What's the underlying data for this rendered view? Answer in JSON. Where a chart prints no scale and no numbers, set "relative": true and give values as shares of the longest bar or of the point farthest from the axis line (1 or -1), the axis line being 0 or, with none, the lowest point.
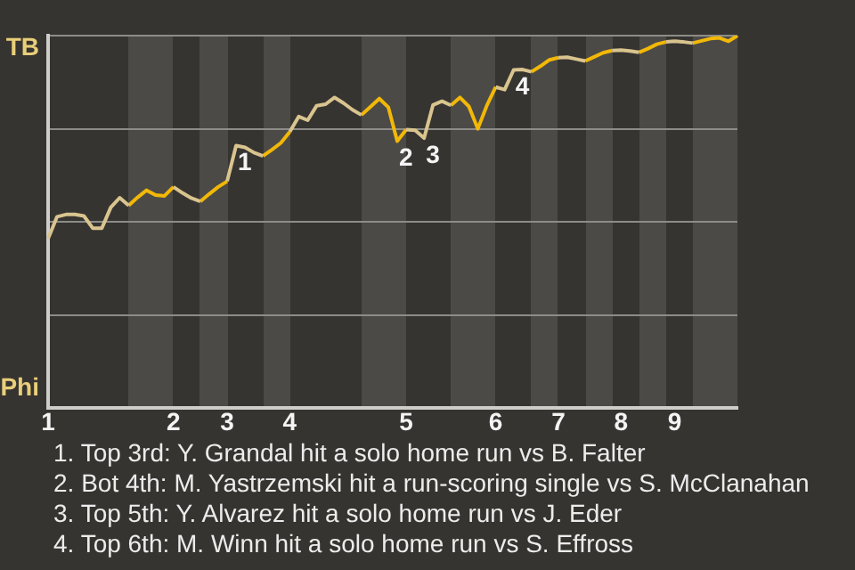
{
  "chart_data": {
    "type": "line",
    "relative": true,
    "grid": "y",
    "marker": "none",
    "categories": [
      "1",
      null,
      null,
      null,
      null,
      null,
      null,
      null,
      null,
      null,
      null,
      null,
      null,
      null,
      "2",
      null,
      null,
      null,
      null,
      null,
      "3",
      null,
      null,
      null,
      null,
      null,
      null,
      "4",
      null,
      null,
      null,
      null,
      null,
      null,
      null,
      null,
      null,
      null,
      null,
      null,
      "5",
      null,
      null,
      null,
      null,
      null,
      null,
      null,
      null,
      null,
      "6",
      null,
      null,
      null,
      null,
      null,
      null,
      "7",
      null,
      null,
      null,
      null,
      null,
      null,
      "8",
      null,
      null,
      null,
      null,
      null,
      "9",
      null,
      null,
      null,
      null,
      null,
      null,
      null
    ],
    "series": [
      {
        "color": "#d9c48f",
        "values": [
          0.455,
          0.514,
          0.52,
          0.52,
          0.516,
          0.483,
          0.483,
          0.539,
          0.565,
          0.544,
          null,
          null,
          null,
          null,
          0.594,
          0.578,
          0.564,
          0.555,
          null,
          null,
          0.609,
          0.705,
          0.7,
          0.686,
          0.677,
          null,
          null,
          0.742,
          0.783,
          0.773,
          0.812,
          0.816,
          0.834,
          0.819,
          0.801,
          0.787,
          null,
          null,
          null,
          null,
          0.748,
          0.746,
          0.725,
          0.814,
          0.824,
          0.813,
          null,
          null,
          null,
          null,
          0.862,
          0.855,
          0.908,
          0.909,
          0.903,
          null,
          null,
          0.941,
          0.942,
          0.937,
          0.932,
          null,
          null,
          0.96,
          0.961,
          0.959,
          0.955,
          null,
          null,
          0.983,
          0.985,
          0.983,
          0.98,
          null,
          null,
          null,
          null,
          null
        ]
      },
      {
        "color": "#f2b807",
        "values": [
          null,
          null,
          null,
          null,
          null,
          null,
          null,
          null,
          null,
          0.544,
          0.566,
          0.585,
          0.572,
          0.57,
          0.594,
          null,
          null,
          0.555,
          0.575,
          0.594,
          0.609,
          null,
          null,
          null,
          0.677,
          0.694,
          0.712,
          0.742,
          null,
          null,
          null,
          null,
          null,
          null,
          null,
          0.787,
          0.809,
          0.831,
          0.808,
          0.717,
          0.748,
          null,
          null,
          null,
          null,
          0.813,
          0.834,
          0.81,
          0.75,
          0.812,
          0.862,
          null,
          null,
          null,
          0.903,
          0.918,
          0.935,
          0.941,
          null,
          null,
          0.932,
          0.943,
          0.954,
          0.96,
          null,
          null,
          0.955,
          0.965,
          0.977,
          0.983,
          null,
          null,
          0.98,
          0.986,
          0.992,
          0.994,
          0.985,
          1
        ]
      }
    ],
    "annotations": [
      "TB",
      "Phi",
      {
        "text": "1",
        "y": 0.705
      },
      {
        "text": "2",
        "y": 0.717
      },
      {
        "text": "3",
        "y": 0.725
      },
      {
        "text": "4",
        "y": 0.908
      },
      "1. Top 3rd: Y. Grandal hit a solo home run vs B. Falter",
      "2. Bot 4th: M. Yastrzemski hit a run-scoring single vs S. McClanahan",
      "3. Top 5th: Y. Alvarez hit a solo home run vs J. Eder",
      "4. Top 6th: M. Winn hit a solo home run vs S. Effross"
    ]
  }
}
